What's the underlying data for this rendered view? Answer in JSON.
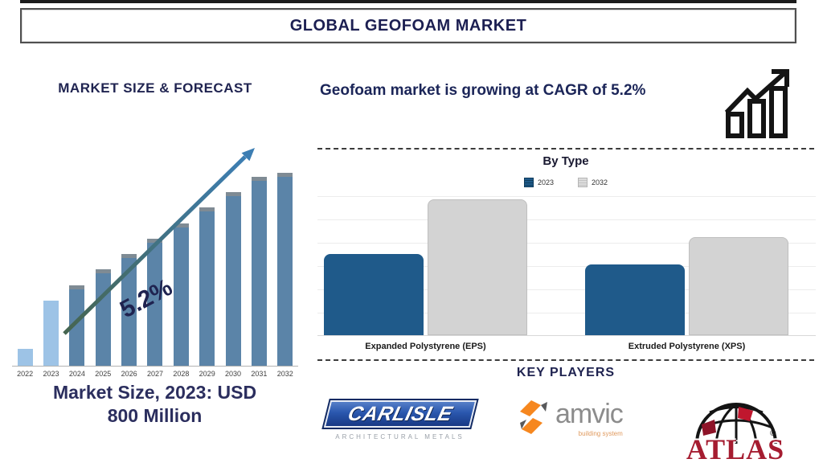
{
  "title": "GLOBAL GEOFOAM MARKET",
  "left_panel": {
    "heading": "MARKET SIZE & FORECAST",
    "growth_annotation": "5.2%",
    "caption_line1": "Market Size, 2023: USD",
    "caption_line2": "800 Million"
  },
  "right_panel": {
    "headline": "Geofoam market is growing at CAGR of 5.2%",
    "growth_icon": "bar-chart-rising-arrow-icon",
    "by_type_heading": "By Type",
    "key_players_heading": "KEY PLAYERS"
  },
  "key_players": [
    {
      "name": "Carlisle",
      "logo_text": "CARLISLE",
      "logo_subtext": "ARCHITECTURAL METALS"
    },
    {
      "name": "Amvic",
      "logo_text": "amvic",
      "logo_subtext": "building system"
    },
    {
      "name": "Atlas",
      "logo_text": "ATLAS",
      "mark": "®"
    }
  ],
  "chart_data": [
    {
      "type": "bar",
      "title": "MARKET SIZE & FORECAST",
      "categories": [
        "2022",
        "2023",
        "2024",
        "2025",
        "2026",
        "2027",
        "2028",
        "2029",
        "2030",
        "2031",
        "2032"
      ],
      "values_relative_pct": [
        9,
        34,
        42,
        50,
        58,
        66,
        74,
        82,
        90,
        98,
        100
      ],
      "bar_styles": [
        "light",
        "light",
        "dark",
        "dark",
        "dark",
        "dark",
        "dark",
        "dark",
        "dark",
        "dark",
        "dark"
      ],
      "annotation": "5.2%",
      "known_point": "Market Size, 2023: USD 800 Million",
      "axis_values_shown": false,
      "trend_arrow": true,
      "xlabel": "",
      "ylabel": ""
    },
    {
      "type": "bar",
      "title": "By Type",
      "categories": [
        "Expanded Polystyrene (EPS)",
        "Extruded Polystyrene (XPS)"
      ],
      "series": [
        {
          "name": "2023",
          "values_relative_pct": [
            60,
            52
          ]
        },
        {
          "name": "2032",
          "values_relative_pct": [
            100,
            72
          ]
        }
      ],
      "legend_position": "top",
      "axis_values_shown": false,
      "grid": true,
      "xlabel": "",
      "ylabel": ""
    }
  ],
  "colors": {
    "navy_text": "#1f2350",
    "left_bar_light": "#9dc3e6",
    "left_bar_dark": "#5b84a8",
    "left_bar_cap": "#7f8b94",
    "right_bar_2023": "#1f5a8a",
    "right_bar_2032": "#d3d3d3",
    "arrow_start": "#46654f",
    "arrow_end": "#3d7eb3",
    "carlisle_blue": "#1c3d8f",
    "amvic_orange": "#f6871f",
    "amvic_gray": "#8c8c8c",
    "atlas_red": "#a51c30"
  }
}
